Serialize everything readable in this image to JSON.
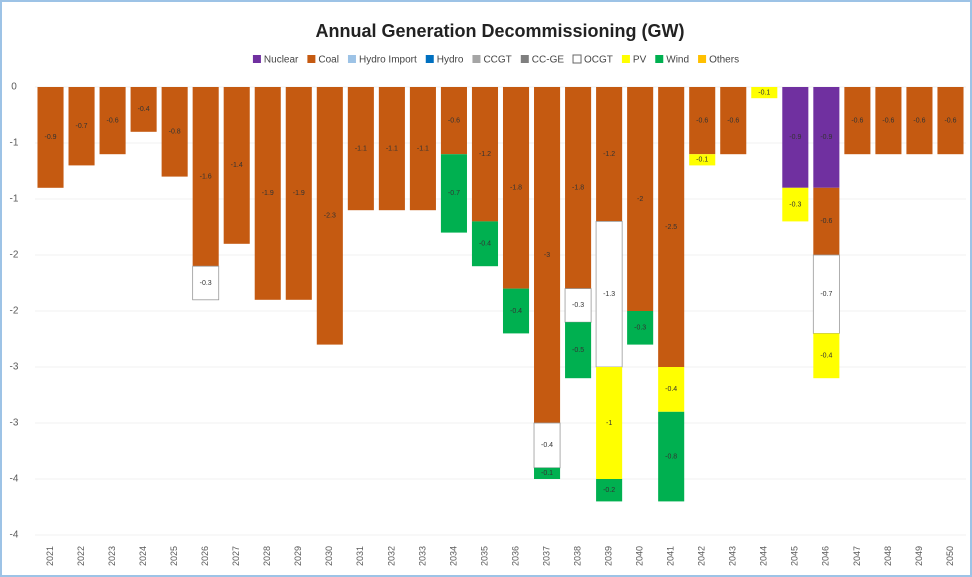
{
  "chart_data": {
    "type": "stacked_bar",
    "title": "Annual Generation Decommissioning (GW)",
    "categories": [
      "2021",
      "2022",
      "2023",
      "2024",
      "2025",
      "2026",
      "2027",
      "2028",
      "2029",
      "2030",
      "2031",
      "2032",
      "2033",
      "2034",
      "2035",
      "2036",
      "2037",
      "2038",
      "2039",
      "2040",
      "2041",
      "2042",
      "2043",
      "2044",
      "2045",
      "2046",
      "2047",
      "2048",
      "2049",
      "2050"
    ],
    "series": [
      {
        "name": "Nuclear",
        "color": "#7030a0",
        "values": [
          null,
          null,
          null,
          null,
          null,
          null,
          null,
          null,
          null,
          null,
          null,
          null,
          null,
          null,
          null,
          null,
          null,
          null,
          null,
          null,
          null,
          null,
          null,
          null,
          -0.9,
          -0.9,
          null,
          null,
          null,
          null
        ]
      },
      {
        "name": "Coal",
        "color": "#c55a11",
        "values": [
          -0.9,
          -0.7,
          -0.6,
          -0.4,
          -0.8,
          -1.6,
          -1.4,
          -1.9,
          -1.9,
          -2.3,
          -1.1,
          -1.1,
          -1.1,
          -0.6,
          -1.2,
          -1.8,
          -3.0,
          -1.8,
          -1.2,
          -2.0,
          -2.5,
          -0.6,
          -0.6,
          null,
          null,
          -0.6,
          -0.6,
          -0.6,
          -0.6,
          -0.6
        ]
      },
      {
        "name": "Hydro Import",
        "color": "#9dc3e6",
        "values": [
          null,
          null,
          null,
          null,
          null,
          null,
          null,
          null,
          null,
          null,
          null,
          null,
          null,
          null,
          null,
          null,
          null,
          null,
          null,
          null,
          null,
          null,
          null,
          null,
          null,
          null,
          null,
          null,
          null,
          null
        ]
      },
      {
        "name": "Hydro",
        "color": "#0070c0",
        "values": [
          null,
          null,
          null,
          null,
          null,
          null,
          null,
          null,
          null,
          null,
          null,
          null,
          null,
          null,
          null,
          null,
          null,
          null,
          null,
          null,
          null,
          null,
          null,
          null,
          null,
          null,
          null,
          null,
          null,
          null
        ]
      },
      {
        "name": "CCGT",
        "color": "#a5a5a5",
        "values": [
          null,
          null,
          null,
          null,
          null,
          null,
          null,
          null,
          null,
          null,
          null,
          null,
          null,
          null,
          null,
          null,
          null,
          null,
          null,
          null,
          null,
          null,
          null,
          null,
          null,
          null,
          null,
          null,
          null,
          null
        ]
      },
      {
        "name": "CC-GE",
        "color": "#7f7f7f",
        "values": [
          null,
          null,
          null,
          null,
          null,
          null,
          null,
          null,
          null,
          null,
          null,
          null,
          null,
          null,
          null,
          null,
          null,
          null,
          null,
          null,
          null,
          null,
          null,
          null,
          null,
          null,
          null,
          null,
          null,
          null
        ]
      },
      {
        "name": "OCGT",
        "color": "#ffffff",
        "values": [
          null,
          null,
          null,
          null,
          null,
          -0.3,
          null,
          null,
          null,
          null,
          null,
          null,
          null,
          null,
          null,
          null,
          -0.4,
          -0.3,
          -1.3,
          null,
          null,
          null,
          null,
          null,
          null,
          -0.7,
          null,
          null,
          null,
          null
        ]
      },
      {
        "name": "PV",
        "color": "#ffff00",
        "values": [
          null,
          null,
          null,
          null,
          null,
          null,
          null,
          null,
          null,
          null,
          null,
          null,
          null,
          null,
          null,
          null,
          null,
          null,
          -1.0,
          null,
          -0.4,
          -0.1,
          null,
          -0.1,
          -0.3,
          -0.4,
          null,
          null,
          null,
          null
        ]
      },
      {
        "name": "Wind",
        "color": "#00b050",
        "values": [
          null,
          null,
          null,
          null,
          null,
          null,
          null,
          null,
          null,
          null,
          null,
          null,
          null,
          -0.7,
          -0.4,
          -0.4,
          -0.1,
          -0.5,
          -0.2,
          -0.3,
          -0.8,
          null,
          null,
          null,
          null,
          null,
          null,
          null,
          null,
          null
        ]
      },
      {
        "name": "Others",
        "color": "#ffc000",
        "values": [
          null,
          null,
          null,
          null,
          null,
          null,
          null,
          null,
          null,
          null,
          null,
          null,
          null,
          null,
          null,
          null,
          null,
          null,
          null,
          null,
          null,
          null,
          null,
          null,
          null,
          null,
          null,
          null,
          null,
          null
        ]
      }
    ],
    "ylim": [
      -4,
      0
    ],
    "yticks": [
      0,
      {
        "value": -0.5,
        "label": "-1"
      },
      -1,
      {
        "value": -1.5,
        "label": "-2"
      },
      -2,
      {
        "value": -2.5,
        "label": "-3"
      },
      -3,
      {
        "value": -3.5,
        "label": "-4"
      },
      -4
    ],
    "grid": true
  }
}
